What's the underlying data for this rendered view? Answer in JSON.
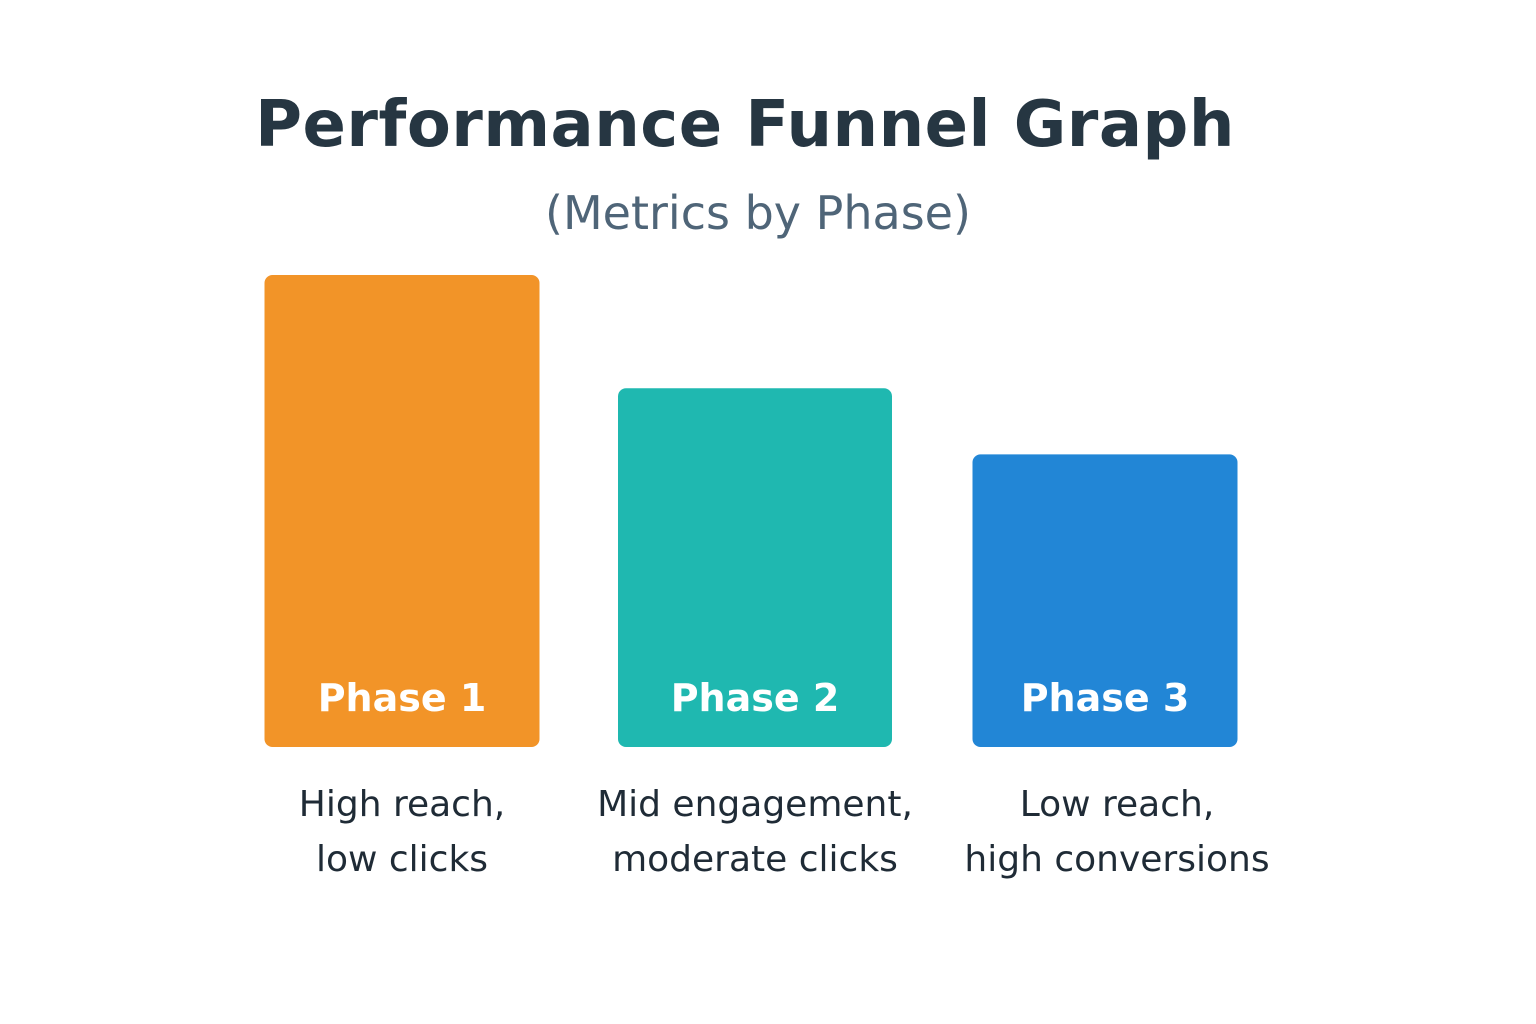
{
  "chart_data": {
    "type": "bar",
    "title": "Performance Funnel Graph",
    "subtitle": "(Metrics by Phase)",
    "categories": [
      "Phase 1",
      "Phase 2",
      "Phase 3"
    ],
    "values": [
      100,
      76,
      62
    ],
    "colors": [
      "#f29428",
      "#1fb8b0",
      "#2286d6"
    ],
    "descriptions": [
      [
        "High reach,",
        "low clicks"
      ],
      [
        "Mid engagement,",
        "moderate clicks"
      ],
      [
        "Low reach,",
        "high conversions"
      ]
    ],
    "xlabel": "",
    "ylabel": "",
    "ylim": [
      0,
      100
    ],
    "grid": false,
    "legend": "none"
  }
}
